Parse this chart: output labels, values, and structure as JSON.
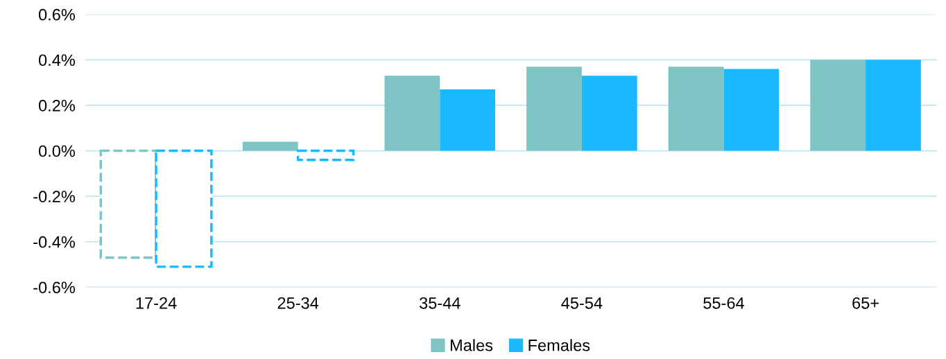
{
  "chart_data": {
    "type": "bar",
    "categories": [
      "17-24",
      "25-34",
      "35-44",
      "45-54",
      "55-64",
      "65+"
    ],
    "series": [
      {
        "name": "Males",
        "color": "#7fc4c4",
        "values": [
          -0.47,
          0.04,
          0.33,
          0.37,
          0.37,
          0.4
        ]
      },
      {
        "name": "Females",
        "color": "#1ab8ff",
        "values": [
          -0.51,
          -0.04,
          0.27,
          0.33,
          0.36,
          0.4
        ]
      }
    ],
    "ylim": [
      -0.6,
      0.6
    ],
    "yticks": [
      {
        "value": -0.6,
        "label": "-0.6%"
      },
      {
        "value": -0.4,
        "label": "-0.4%"
      },
      {
        "value": -0.2,
        "label": "-0.2%"
      },
      {
        "value": 0.0,
        "label": "0.0%"
      },
      {
        "value": 0.2,
        "label": "0.2%"
      },
      {
        "value": 0.4,
        "label": "0.4%"
      },
      {
        "value": 0.6,
        "label": "0.6%"
      }
    ],
    "grid": "y",
    "legend": "bottom"
  }
}
